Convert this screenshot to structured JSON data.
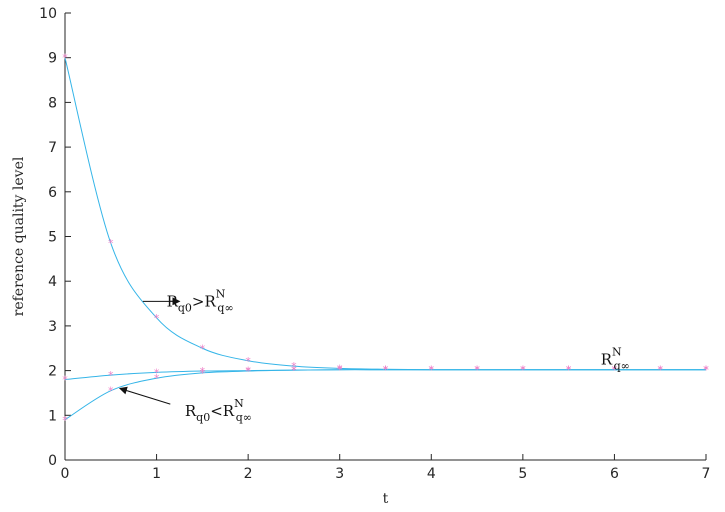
{
  "chart_data": {
    "type": "line",
    "xlabel": "t",
    "ylabel": "reference quality level",
    "xlim": [
      0,
      7
    ],
    "ylim": [
      0,
      10
    ],
    "xticks": [
      "0",
      "1",
      "2",
      "3",
      "4",
      "5",
      "6",
      "7"
    ],
    "yticks": [
      "0",
      "1",
      "2",
      "3",
      "4",
      "5",
      "6",
      "7",
      "8",
      "9",
      "10"
    ],
    "grid": false,
    "legend": "none",
    "colors": {
      "line": "#35b5e8",
      "marker": "#ee82c8",
      "axis": "#262626"
    },
    "series": [
      {
        "x": [
          0,
          0.5,
          1,
          1.5,
          2,
          2.5,
          3,
          3.5,
          4,
          4.5,
          5,
          5.5,
          6,
          6.5,
          7
        ],
        "y": [
          9.0,
          4.85,
          3.18,
          2.5,
          2.22,
          2.1,
          2.05,
          2.03,
          2.02,
          2.02,
          2.02,
          2.02,
          2.02,
          2.02,
          2.02
        ]
      },
      {
        "x": [
          0,
          0.5,
          1,
          1.5,
          2,
          2.5,
          3,
          3.5,
          4,
          4.5,
          5,
          5.5,
          6,
          6.5,
          7
        ],
        "y": [
          1.8,
          1.9,
          1.96,
          1.99,
          2.0,
          2.01,
          2.02,
          2.02,
          2.02,
          2.02,
          2.02,
          2.02,
          2.02,
          2.02,
          2.02
        ]
      },
      {
        "x": [
          0,
          0.5,
          1,
          1.5,
          2,
          2.5,
          3,
          3.5,
          4,
          4.5,
          5,
          5.5,
          6,
          6.5,
          7
        ],
        "y": [
          0.9,
          1.55,
          1.83,
          1.95,
          1.99,
          2.01,
          2.02,
          2.02,
          2.02,
          2.02,
          2.02,
          2.02,
          2.02,
          2.02,
          2.02
        ]
      }
    ],
    "annotations": [
      {
        "main": "R",
        "sub": "q0",
        "rel": ">",
        "main2": "R",
        "sup2": "N",
        "sub2": "q∞",
        "anchor": [
          1.0,
          3.55
        ],
        "arrow_from": [
          0.85,
          3.55
        ],
        "arrow_to": [
          1.25,
          3.55
        ]
      },
      {
        "main": "R",
        "sub": "q0",
        "rel": "<",
        "main2": "R",
        "sup2": "N",
        "sub2": "q∞",
        "anchor": [
          1.2,
          1.1
        ],
        "arrow_from": [
          1.15,
          1.25
        ],
        "arrow_to": [
          0.6,
          1.6
        ]
      },
      {
        "main": "R",
        "sup": "N",
        "sub": "q∞",
        "anchor": [
          5.85,
          2.25
        ]
      }
    ]
  }
}
